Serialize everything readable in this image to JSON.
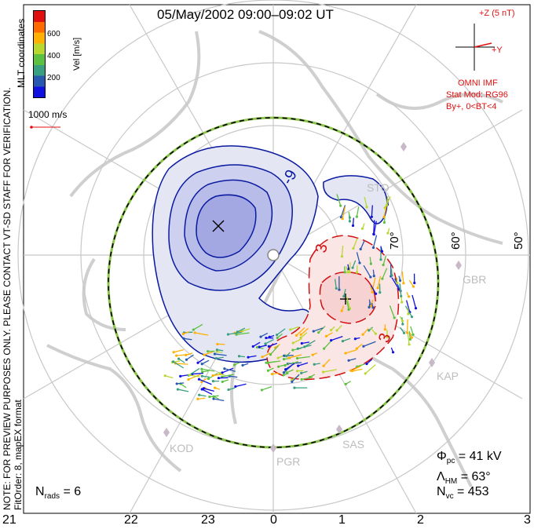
{
  "title": "05/May/2002 09:00–09:02 UT",
  "colorbar": {
    "label": "Vel [m/s]",
    "ticks": [
      "600",
      "400",
      "200"
    ],
    "colors": [
      "#e01010",
      "#ff6a00",
      "#ffb000",
      "#b8d830",
      "#5cc040",
      "#38a080",
      "#2858b0",
      "#1010e0"
    ]
  },
  "left_margin": {
    "coords": "MLT coordinates",
    "note": "NOTE: FOR PREVIEW PURPOSES ONLY. PLEASE CONTACT VT-SD STAFF FOR VERIFICATION.",
    "fitorder": "FitOrder: 8, mapEX format"
  },
  "vector_scale": "1000 m/s",
  "imf": {
    "axis_z": "+Z (5 nT)",
    "axis_y": "+Y",
    "source": "OMNI IMF",
    "model": "Stat Mod: RG96",
    "condition": "By+, 0<BT<4"
  },
  "contours": {
    "neg": "-9",
    "pos": "3",
    "pos2": "3"
  },
  "latitudes": [
    "70°",
    "60°",
    "50°"
  ],
  "stations": [
    "STO",
    "GBR",
    "KAP",
    "SAS",
    "PGR",
    "KOD"
  ],
  "mlt_ticks": [
    "21",
    "22",
    "23",
    "0",
    "1",
    "2",
    "3"
  ],
  "stats": {
    "phi_pc": "= 41 kV",
    "lambda_hm": "= 63°",
    "n_vc": "= 453",
    "n_rads": "= 6"
  },
  "colors": {
    "negative": "#0a1aa0",
    "positive": "#d01010",
    "grid": "#c8c8c8",
    "land": "#d8d8d8"
  }
}
